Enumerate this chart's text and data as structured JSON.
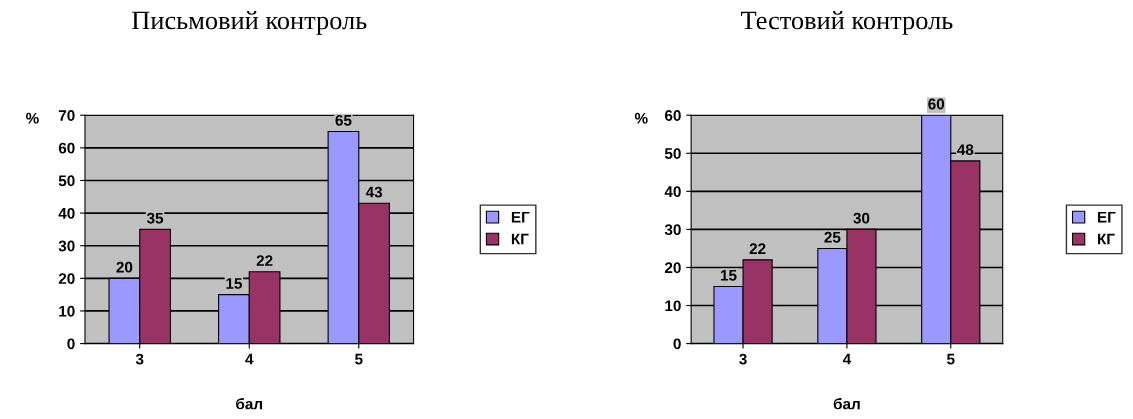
{
  "chart_data": [
    {
      "type": "bar",
      "title": "Письмовий контроль",
      "xlabel": "бал",
      "ylabel": "%",
      "categories": [
        "3",
        "4",
        "5"
      ],
      "series": [
        {
          "name": "ЕГ",
          "color": "#9999ff",
          "values": [
            20,
            15,
            65
          ]
        },
        {
          "name": "КГ",
          "color": "#993366",
          "values": [
            35,
            22,
            43
          ]
        }
      ],
      "ylim": [
        0,
        70
      ],
      "yticks": [
        0,
        10,
        20,
        30,
        40,
        50,
        60,
        70
      ],
      "grid": "y",
      "legend": "right",
      "data_labels": true
    },
    {
      "type": "bar",
      "title": "Тестовий контроль",
      "xlabel": "бал",
      "ylabel": "%",
      "categories": [
        "3",
        "4",
        "5"
      ],
      "series": [
        {
          "name": "ЕГ",
          "color": "#9999ff",
          "values": [
            15,
            25,
            60
          ]
        },
        {
          "name": "КГ",
          "color": "#993366",
          "values": [
            22,
            30,
            48
          ]
        }
      ],
      "ylim": [
        0,
        60
      ],
      "yticks": [
        0,
        10,
        20,
        30,
        40,
        50,
        60
      ],
      "grid": "y",
      "legend": "right",
      "data_labels": true
    }
  ]
}
